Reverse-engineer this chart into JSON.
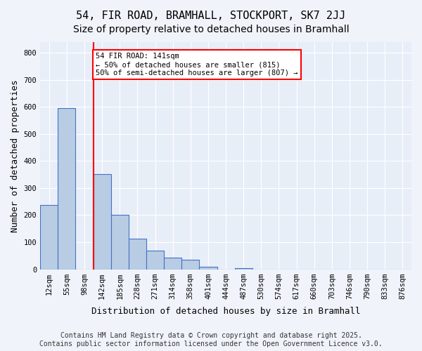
{
  "title_line1": "54, FIR ROAD, BRAMHALL, STOCKPORT, SK7 2JJ",
  "title_line2": "Size of property relative to detached houses in Bramhall",
  "xlabel": "Distribution of detached houses by size in Bramhall",
  "ylabel": "Number of detached properties",
  "footer": "Contains HM Land Registry data © Crown copyright and database right 2025.\nContains public sector information licensed under the Open Government Licence v3.0.",
  "bin_labels": [
    "12sqm",
    "55sqm",
    "98sqm",
    "142sqm",
    "185sqm",
    "228sqm",
    "271sqm",
    "314sqm",
    "358sqm",
    "401sqm",
    "444sqm",
    "487sqm",
    "530sqm",
    "574sqm",
    "617sqm",
    "660sqm",
    "703sqm",
    "746sqm",
    "790sqm",
    "833sqm",
    "876sqm"
  ],
  "bar_values": [
    237,
    597,
    0,
    352,
    200,
    112,
    70,
    44,
    34,
    10,
    0,
    5,
    0,
    0,
    0,
    0,
    0,
    0,
    0,
    0,
    0
  ],
  "bar_color": "#b8cce4",
  "bar_edge_color": "#4472c4",
  "vline_x_index": 3,
  "vline_color": "#ff0000",
  "annotation_text": "54 FIR ROAD: 141sqm\n← 50% of detached houses are smaller (815)\n50% of semi-detached houses are larger (807) →",
  "annotation_box_color": "#ff0000",
  "ylim": [
    0,
    840
  ],
  "yticks": [
    0,
    100,
    200,
    300,
    400,
    500,
    600,
    700,
    800
  ],
  "background_color": "#f0f4fa",
  "plot_bg_color": "#e8eef8",
  "title_fontsize": 11,
  "subtitle_fontsize": 10,
  "axis_label_fontsize": 9,
  "tick_fontsize": 7.5,
  "footer_fontsize": 7
}
